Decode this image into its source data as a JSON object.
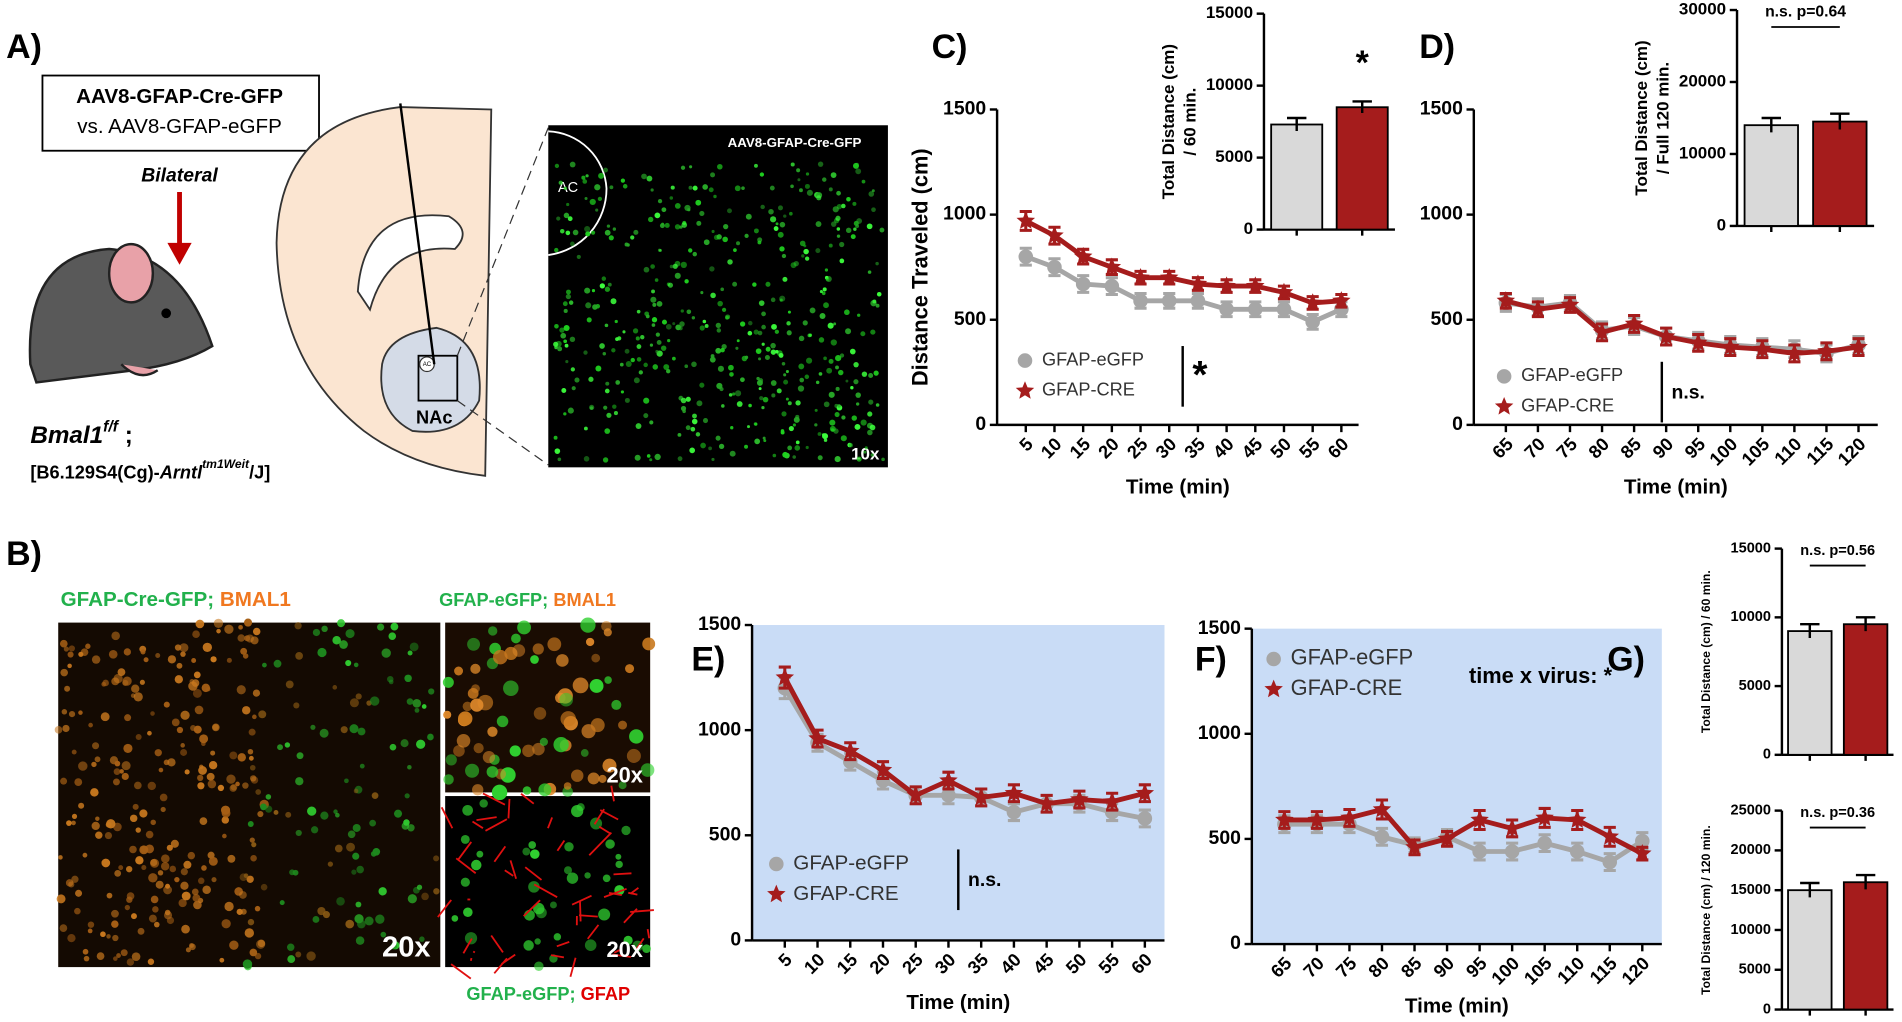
{
  "figure": {
    "panel_a": {
      "label": "A)",
      "virus": "AAV8-GFAP-Cre-GFP",
      "control": "vs. AAV8-GFAP-eGFP",
      "injection": "Bilateral",
      "genotype": "Bmal1",
      "genotype_sup": "f/f",
      "genotype_end": " ;",
      "strain_start": "[B6.129S4(Cg)-",
      "strain_gene": "Arntl",
      "strain_sup": "tm1Weit",
      "strain_end": "/J]",
      "region": "NAc",
      "commissure": "AC",
      "image_label": "AAV8-GFAP-Cre-GFP",
      "image_ac": "AC",
      "magnification": "10x"
    },
    "panel_b": {
      "label": "B)",
      "left_green": "GFAP-Cre-GFP;",
      "left_orange": "BMAL1",
      "right_green": "GFAP-eGFP;",
      "right_orange": "BMAL1",
      "mag_left": "20x",
      "mag_top": "20x",
      "mag_bottom": "20x",
      "bottom_green": "GFAP-eGFP;",
      "bottom_red": "GFAP"
    }
  },
  "chart_data": [
    {
      "type": "line",
      "panel": "C)",
      "ylabel": "Distance Traveled (cm)",
      "xlabel": "Time (min)",
      "x": [
        5,
        10,
        15,
        20,
        25,
        30,
        35,
        40,
        45,
        50,
        55,
        60
      ],
      "xlim": [
        0,
        63
      ],
      "xticks": [
        5,
        10,
        15,
        20,
        25,
        30,
        35,
        40,
        45,
        50,
        55,
        60
      ],
      "ylim": [
        0,
        1500
      ],
      "yticks": [
        0,
        500,
        1000,
        1500
      ],
      "legend_note": "*",
      "series": [
        {
          "name": "GFAP-eGFP",
          "color": "#a6a6a6",
          "marker": "circle",
          "values": [
            800,
            750,
            670,
            660,
            590,
            590,
            590,
            550,
            550,
            550,
            490,
            550
          ],
          "errors": [
            40,
            40,
            40,
            40,
            35,
            35,
            35,
            35,
            35,
            35,
            35,
            35
          ]
        },
        {
          "name": "GFAP-CRE",
          "color": "#a51c1c",
          "marker": "star",
          "values": [
            970,
            900,
            800,
            750,
            700,
            700,
            670,
            660,
            660,
            630,
            580,
            590
          ],
          "errors": [
            45,
            40,
            35,
            35,
            30,
            30,
            30,
            30,
            30,
            30,
            30,
            30
          ]
        }
      ]
    },
    {
      "type": "bar",
      "ylabel": [
        "Total Distance (cm)",
        "/ 60 min."
      ],
      "categories": [
        null,
        null
      ],
      "ylim": [
        0,
        15000
      ],
      "yticks": [
        0,
        5000,
        10000,
        15000
      ],
      "values": [
        7300,
        8500
      ],
      "errors": [
        450,
        400
      ],
      "colors": [
        "#d9d9d9",
        "#a51c1c"
      ],
      "annotation": "*"
    },
    {
      "type": "line",
      "panel": "D)",
      "xlabel": "Time (min)",
      "x": [
        65,
        70,
        75,
        80,
        85,
        90,
        95,
        100,
        105,
        110,
        115,
        120
      ],
      "xlim": [
        60,
        123
      ],
      "xticks": [
        65,
        70,
        75,
        80,
        85,
        90,
        95,
        100,
        105,
        110,
        115,
        120
      ],
      "ylim": [
        0,
        1500
      ],
      "yticks": [
        0,
        500,
        1000,
        1500
      ],
      "legend_note": "n.s.",
      "series": [
        {
          "name": "GFAP-eGFP",
          "color": "#a6a6a6",
          "marker": "circle",
          "values": [
            580,
            560,
            580,
            450,
            470,
            420,
            400,
            380,
            370,
            360,
            340,
            380
          ],
          "errors": [
            40,
            40,
            35,
            40,
            40,
            40,
            40,
            40,
            40,
            40,
            40,
            40
          ]
        },
        {
          "name": "GFAP-CRE",
          "color": "#a51c1c",
          "marker": "star",
          "values": [
            590,
            550,
            570,
            440,
            480,
            420,
            390,
            370,
            360,
            340,
            350,
            370
          ],
          "errors": [
            35,
            35,
            35,
            40,
            40,
            40,
            40,
            40,
            40,
            40,
            40,
            40
          ]
        }
      ]
    },
    {
      "type": "bar",
      "ylabel": [
        "Total Distance (cm)",
        "/ Full 120 min."
      ],
      "categories": [
        null,
        null
      ],
      "ylim": [
        0,
        30000
      ],
      "yticks": [
        0,
        10000,
        20000,
        30000
      ],
      "values": [
        14000,
        14500
      ],
      "errors": [
        1000,
        1100
      ],
      "colors": [
        "#d9d9d9",
        "#a51c1c"
      ],
      "annotation": "n.s. p=0.64"
    },
    {
      "type": "line",
      "panel": "E)",
      "xlabel": "Time (min)",
      "background": "#c9dcf6",
      "x": [
        5,
        10,
        15,
        20,
        25,
        30,
        35,
        40,
        45,
        50,
        55,
        60
      ],
      "xlim": [
        0,
        63
      ],
      "xticks": [
        5,
        10,
        15,
        20,
        25,
        30,
        35,
        40,
        45,
        50,
        55,
        60
      ],
      "ylim": [
        0,
        1500
      ],
      "yticks": [
        0,
        500,
        1000,
        1500
      ],
      "legend_note": "n.s.",
      "series": [
        {
          "name": "GFAP-eGFP",
          "color": "#a6a6a6",
          "marker": "circle",
          "values": [
            1200,
            940,
            850,
            760,
            690,
            690,
            680,
            610,
            650,
            650,
            610,
            580
          ],
          "errors": [
            50,
            40,
            40,
            40,
            40,
            40,
            40,
            40,
            40,
            40,
            40,
            40
          ]
        },
        {
          "name": "GFAP-CRE",
          "color": "#a51c1c",
          "marker": "star",
          "values": [
            1250,
            960,
            900,
            810,
            690,
            760,
            680,
            700,
            650,
            670,
            660,
            700
          ],
          "errors": [
            50,
            40,
            40,
            40,
            40,
            40,
            40,
            40,
            40,
            40,
            40,
            40
          ]
        }
      ]
    },
    {
      "type": "line",
      "panel": "F)",
      "xlabel": "Time (min)",
      "background": "#c9dcf6",
      "annotation": "time x virus: *",
      "x": [
        65,
        70,
        75,
        80,
        85,
        90,
        95,
        100,
        105,
        110,
        115,
        120
      ],
      "xlim": [
        60,
        123
      ],
      "xticks": [
        65,
        70,
        75,
        80,
        85,
        90,
        95,
        100,
        105,
        110,
        115,
        120
      ],
      "ylim": [
        0,
        1500
      ],
      "yticks": [
        0,
        500,
        1000,
        1500
      ],
      "series": [
        {
          "name": "GFAP-eGFP",
          "color": "#a6a6a6",
          "marker": "circle",
          "values": [
            570,
            570,
            570,
            510,
            470,
            510,
            440,
            440,
            480,
            440,
            390,
            490
          ],
          "errors": [
            40,
            40,
            40,
            40,
            35,
            35,
            40,
            40,
            40,
            40,
            40,
            40
          ]
        },
        {
          "name": "GFAP-CRE",
          "color": "#a51c1c",
          "marker": "star",
          "values": [
            590,
            590,
            600,
            640,
            460,
            500,
            590,
            550,
            600,
            590,
            510,
            430
          ],
          "errors": [
            40,
            40,
            40,
            45,
            35,
            35,
            45,
            40,
            45,
            45,
            45,
            30
          ]
        }
      ]
    },
    {
      "type": "bar",
      "panel": "G)",
      "ylabel": [
        "Total Distance (cm) / 60 min."
      ],
      "categories": [
        null,
        null
      ],
      "ylim": [
        0,
        15000
      ],
      "yticks": [
        0,
        5000,
        10000,
        15000
      ],
      "values": [
        9000,
        9500
      ],
      "errors": [
        500,
        500
      ],
      "colors": [
        "#d9d9d9",
        "#a51c1c"
      ],
      "annotation": "n.s. p=0.56"
    },
    {
      "type": "bar",
      "ylabel": [
        "Total Distance (cm) / 120 min."
      ],
      "categories": [
        null,
        null
      ],
      "ylim": [
        0,
        25000
      ],
      "yticks": [
        0,
        5000,
        10000,
        15000,
        20000,
        25000
      ],
      "values": [
        15000,
        16000
      ],
      "errors": [
        900,
        900
      ],
      "colors": [
        "#d9d9d9",
        "#a51c1c"
      ],
      "annotation": "n.s. p=0.36"
    }
  ]
}
